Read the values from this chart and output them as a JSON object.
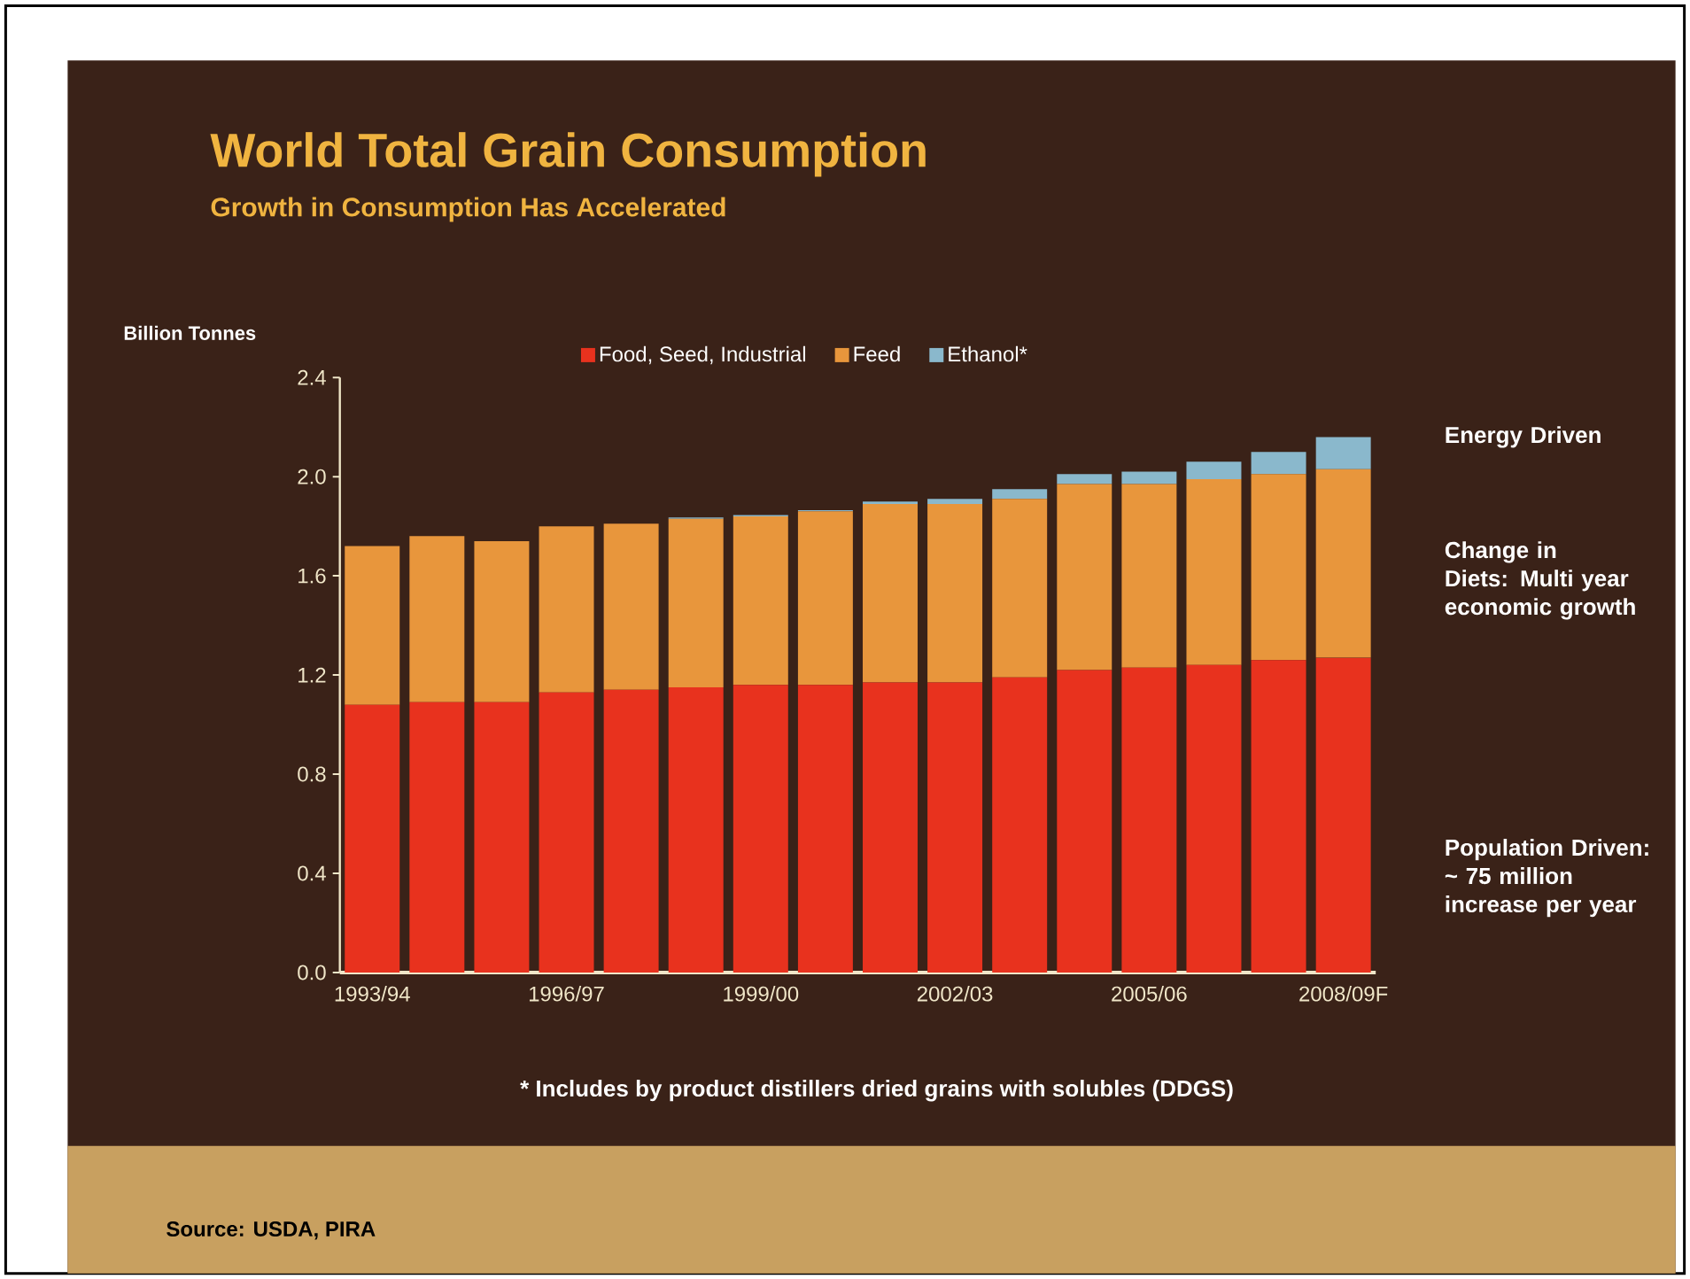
{
  "chart_data": {
    "type": "bar",
    "title": "World Total Grain Consumption",
    "subtitle": "Growth in Consumption Has Accelerated",
    "ylabel": "Billion Tonnes",
    "categories": [
      "1993/94",
      null,
      null,
      "1996/97",
      null,
      null,
      "1999/00",
      null,
      null,
      "2002/03",
      null,
      null,
      "2005/06",
      null,
      null,
      "2008/09F"
    ],
    "stacked": true,
    "series": [
      {
        "name": "Food, Seed, Industrial",
        "color": "#e8321e",
        "values": [
          1.08,
          1.09,
          1.09,
          1.13,
          1.14,
          1.15,
          1.16,
          1.16,
          1.17,
          1.17,
          1.19,
          1.22,
          1.23,
          1.24,
          1.26,
          1.27
        ]
      },
      {
        "name": "Feed",
        "color": "#e8963c",
        "values": [
          0.64,
          0.67,
          0.65,
          0.67,
          0.67,
          0.68,
          0.68,
          0.7,
          0.72,
          0.72,
          0.72,
          0.75,
          0.74,
          0.75,
          0.75,
          0.76
        ]
      },
      {
        "name": "Ethanol*",
        "color": "#8ab8cc",
        "values": [
          0,
          0,
          0,
          0,
          0,
          0.005,
          0.005,
          0.005,
          0.01,
          0.02,
          0.04,
          0.04,
          0.05,
          0.07,
          0.09,
          0.13
        ]
      }
    ],
    "ylim": [
      0,
      2.4
    ],
    "yticks": [
      {
        "value": 0,
        "label": "0.0"
      },
      {
        "value": 0.4,
        "label": "0.4"
      },
      {
        "value": 0.8,
        "label": "0.8"
      },
      {
        "value": 1.2,
        "label": "1.2"
      },
      {
        "value": 1.6,
        "label": "1.6"
      },
      {
        "value": 2.0,
        "label": "2.0"
      },
      {
        "value": 2.4,
        "label": "2.4"
      }
    ],
    "legend": "top",
    "annotations": [
      "Energy Driven",
      "Change in Diets: Multi year economic growth",
      "Population Driven: ~ 75 million increase per year",
      "* Includes by product distillers dried grains with solubles (DDGS)",
      "Source: USDA, PIRA"
    ]
  }
}
